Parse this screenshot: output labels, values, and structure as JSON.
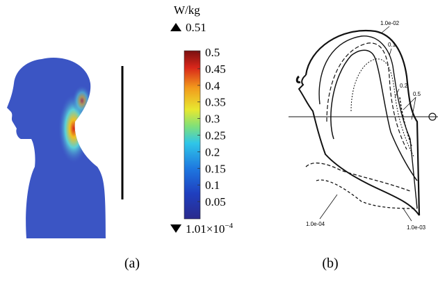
{
  "panel_a": {
    "colorbar": {
      "unit": "W/kg",
      "max_label": "0.51",
      "ticks": [
        0.5,
        0.45,
        0.4,
        0.35,
        0.3,
        0.25,
        0.2,
        0.15,
        0.1,
        0.05
      ],
      "lim": [
        0,
        0.5
      ],
      "min_label": "1.01×10",
      "min_exponent": "−4"
    },
    "caption": "(a)"
  },
  "panel_b": {
    "contour_labels": [
      "1.0e-02",
      "0.1",
      "0.2",
      "0.5",
      "1.0e-04",
      "1.0e-03"
    ],
    "caption": "(b)"
  }
}
